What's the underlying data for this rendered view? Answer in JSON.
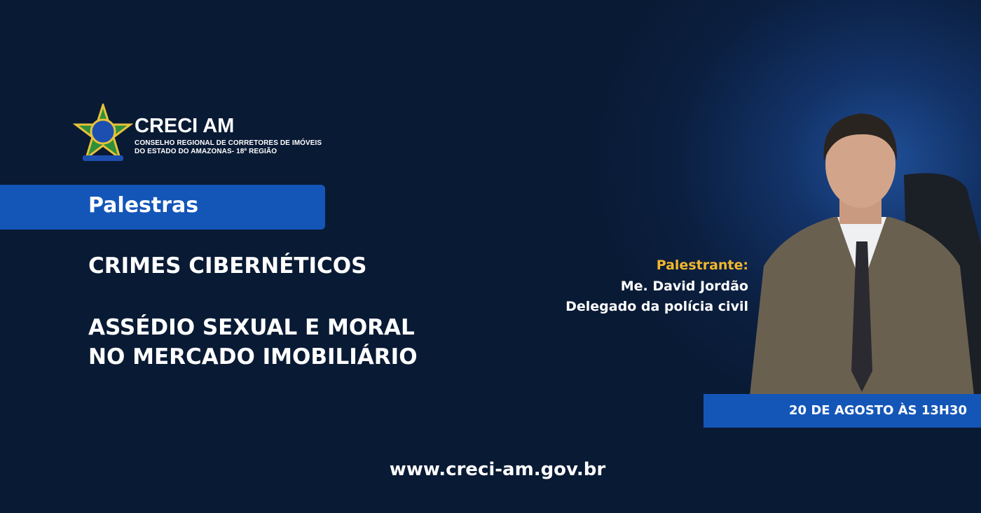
{
  "logo": {
    "title": "CRECI AM",
    "subtitle_lines": [
      "CONSELHO REGIONAL DE CORRETORES DE IMÓVEIS",
      "DO ESTADO DO AMAZONAS- 18ª REGIÃO"
    ]
  },
  "tag": "Palestras",
  "topics": [
    "CRIMES CIBERNÉTICOS",
    "ASSÉDIO SEXUAL E MORAL",
    "NO MERCADO IMOBILIÁRIO"
  ],
  "speaker": {
    "label": "Palestrante:",
    "name": "Me. David Jordão",
    "role": "Delegado da polícia civil"
  },
  "date": "20 DE AGOSTO ÀS 13H30",
  "website": "www.creci-am.gov.br"
}
